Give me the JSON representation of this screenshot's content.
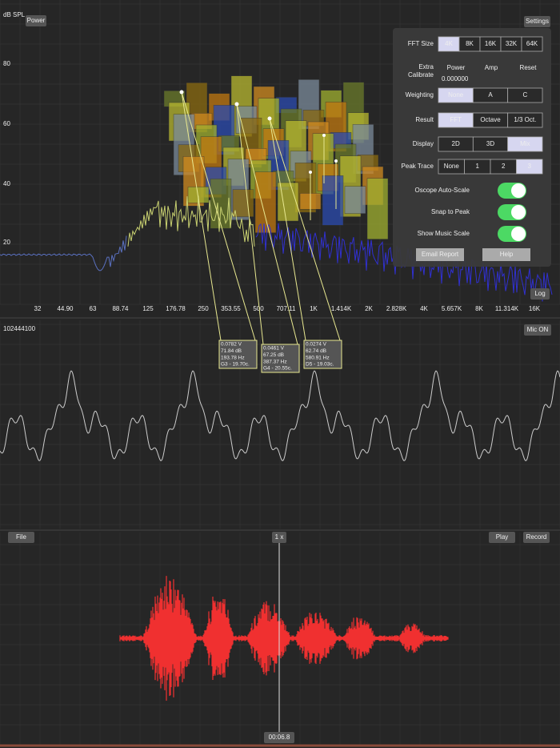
{
  "spectrum": {
    "y_axis_label": "dB SPL",
    "power_button": "Power",
    "settings_button": "Settings",
    "y_ticks": [
      "80",
      "60",
      "40",
      "20"
    ],
    "x_ticks": [
      "32",
      "44.90",
      "63",
      "88.74",
      "125",
      "176.78",
      "250",
      "353.55",
      "500",
      "707.11",
      "1K",
      "1.414K",
      "2K",
      "2.828K",
      "4K",
      "5.657K",
      "8K",
      "11.314K",
      "16K"
    ],
    "log_button": "Log"
  },
  "settings_panel": {
    "segments": [
      {
        "label": "FFT Size",
        "options": [
          "4K",
          "8K",
          "16K",
          "32K",
          "64K"
        ],
        "selected": "4K"
      },
      {
        "label": "Weighting",
        "options": [
          "None",
          "A",
          "C"
        ],
        "selected": "None"
      },
      {
        "label": "Result",
        "options": [
          "FFT",
          "Octave",
          "1/3 Oct."
        ],
        "selected": "FFT"
      },
      {
        "label": "Display",
        "options": [
          "2D",
          "3D",
          "Mix"
        ],
        "selected": "Mix"
      },
      {
        "label": "Peak Trace",
        "options": [
          "None",
          "1",
          "2",
          "3"
        ],
        "selected": "3"
      }
    ],
    "extra_calibrate": {
      "label": "Extra Calibrate",
      "links": [
        "Power",
        "Amp",
        "Reset"
      ],
      "value": "0.000000"
    },
    "toggles": [
      {
        "label": "Oscope Auto-Scale",
        "on": true
      },
      {
        "label": "Snap to Peak",
        "on": true
      },
      {
        "label": "Show Music Scale",
        "on": true
      }
    ],
    "buttons": [
      "Email Report",
      "Help"
    ]
  },
  "peaks": [
    {
      "lines": [
        "0.0782 V",
        "71.84 dB",
        "193.78 Hz",
        "G3 - 19.70c."
      ]
    },
    {
      "lines": [
        "0.0461 V",
        "67.25 dB",
        "387.37 Hz",
        "G4 - 20.55c."
      ]
    },
    {
      "lines": [
        "0.0274 V",
        "62.74 dB",
        "580.91 Hz",
        "D5 - 19.03c."
      ]
    }
  ],
  "oscilloscope": {
    "label": "102444100",
    "mic_button": "Mic ON"
  },
  "recorder": {
    "file_button": "File",
    "zoom": "1 x",
    "play_button": "Play",
    "record_button": "Record",
    "time": "00:06.8"
  }
}
